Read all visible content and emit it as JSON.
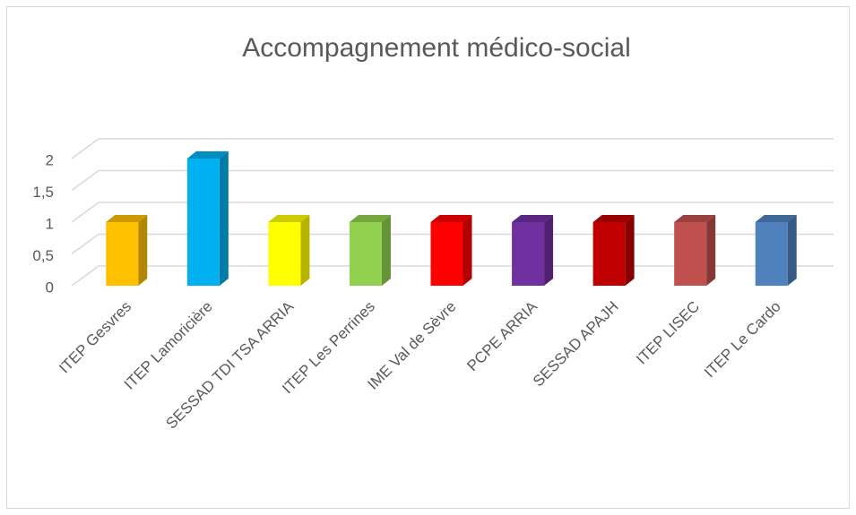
{
  "chart_data": {
    "type": "bar3d",
    "title": "Accompagnement médico-social",
    "categories": [
      "ITEP Gesvres",
      "ITEP Lamoricière",
      "SESSAD TDI TSA ARRIA",
      "ITEP Les Perrines",
      "IME Val de Sèvre",
      "PCPE ARRIA",
      "SESSAD APAJH",
      "ITEP LISEC",
      "ITEP Le Cardo"
    ],
    "values": [
      1,
      2,
      1,
      1,
      1,
      1,
      1,
      1,
      1
    ],
    "colors": [
      "#FFC000",
      "#00B0F0",
      "#FFFF00",
      "#92D050",
      "#FF0000",
      "#7030A0",
      "#C00000",
      "#C0504D",
      "#4F81BD"
    ],
    "ylim": [
      0,
      2
    ],
    "yticks": [
      0,
      {
        "value": 0.5,
        "label": "0,5"
      },
      1,
      {
        "value": 1.5,
        "label": "1,5"
      },
      2
    ],
    "grid": true
  }
}
